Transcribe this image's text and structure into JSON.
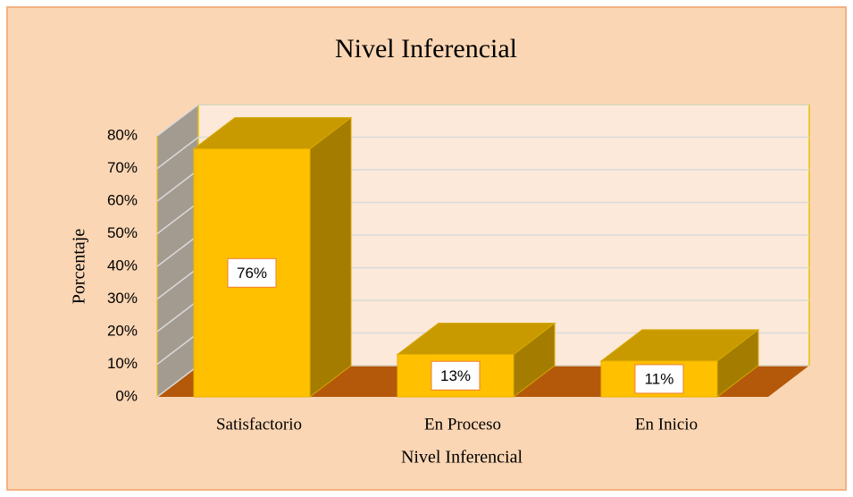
{
  "chart_data": {
    "type": "bar3d",
    "title": "Nivel Inferencial",
    "y_label": "Porcentaje",
    "x_label": "Nivel Inferencial",
    "categories": [
      "Satisfactorio",
      "En Proceso",
      "En Inicio"
    ],
    "values": [
      76,
      13,
      11
    ],
    "value_labels": [
      "76%",
      "13%",
      "11%"
    ],
    "color": "#ffc000",
    "ylim": [
      0,
      80
    ],
    "yticks": [
      {
        "value": 0,
        "label": "0%"
      },
      {
        "value": 10,
        "label": "10%"
      },
      {
        "value": 20,
        "label": "20%"
      },
      {
        "value": 30,
        "label": "30%"
      },
      {
        "value": 40,
        "label": "40%"
      },
      {
        "value": 50,
        "label": "50%"
      },
      {
        "value": 60,
        "label": "60%"
      },
      {
        "value": 70,
        "label": "70%"
      },
      {
        "value": 80,
        "label": "80%"
      }
    ],
    "grid": true
  }
}
